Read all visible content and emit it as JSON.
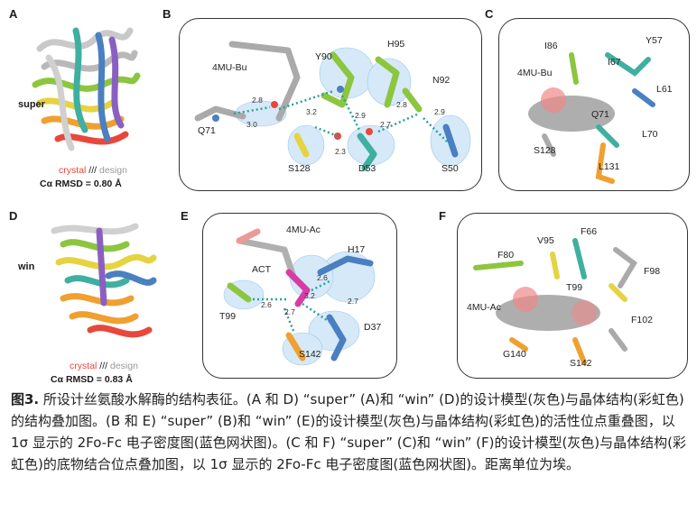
{
  "panels": {
    "A": {
      "letter": "A",
      "side_label": "super",
      "legend_crystal": "crystal",
      "legend_sep": " /// ",
      "legend_design": "design",
      "rmsd": "Cα RMSD = 0.80 Å"
    },
    "B": {
      "letter": "B",
      "labels": [
        "4MU-Bu",
        "Y90",
        "H95",
        "N92",
        "Q71",
        "S128",
        "D53",
        "S50"
      ],
      "distances": [
        "2.8",
        "3.0",
        "3.2",
        "2.9",
        "2.7",
        "2.8",
        "2.9",
        "2.3"
      ]
    },
    "C": {
      "letter": "C",
      "labels": [
        "I86",
        "Y57",
        "I67",
        "4MU-Bu",
        "L61",
        "Q71",
        "S128",
        "L70",
        "L131"
      ]
    },
    "D": {
      "letter": "D",
      "side_label": "win",
      "legend_crystal": "crystal",
      "legend_sep": " /// ",
      "legend_design": "design",
      "rmsd": "Cα RMSD = 0.83 Å"
    },
    "E": {
      "letter": "E",
      "labels": [
        "4MU-Ac",
        "H17",
        "ACT",
        "T99",
        "D37",
        "S142"
      ],
      "distances": [
        "2.6",
        "2.6",
        "3.2",
        "2.7",
        "2.7"
      ]
    },
    "F": {
      "letter": "F",
      "labels": [
        "V95",
        "F66",
        "F80",
        "F98",
        "T99",
        "4MU-Ac",
        "F102",
        "G140",
        "S142"
      ]
    }
  },
  "caption": {
    "fig_label": "图3.",
    "text": " 所设计丝氨酸水解酶的结构表征。(A 和 D) “super” (A)和 “win” (D)的设计模型(灰色)与晶体结构(彩虹色)的结构叠加图。(B 和 E) “super” (B)和 “win” (E)的设计模型(灰色)与晶体结构(彩虹色)的活性位点重叠图，以 1σ 显示的 2Fo-Fc 电子密度图(蓝色网状图)。(C 和 F) “super” (C)和 “win” (F)的设计模型(灰色)与晶体结构(彩虹色)的底物结合位点叠加图，以 1σ 显示的 2Fo-Fc 电子密度图(蓝色网状图)。距离单位为埃。"
  },
  "colors": {
    "crystal_rainbow": [
      "#e8483b",
      "#f0a030",
      "#e6d340",
      "#8cc63f",
      "#3fb0a0",
      "#4a7fc1",
      "#8a5fc2"
    ],
    "design_gray": "#b8b8b8",
    "density_blue": "#9cc8ec",
    "hbond": "#2aa198"
  }
}
